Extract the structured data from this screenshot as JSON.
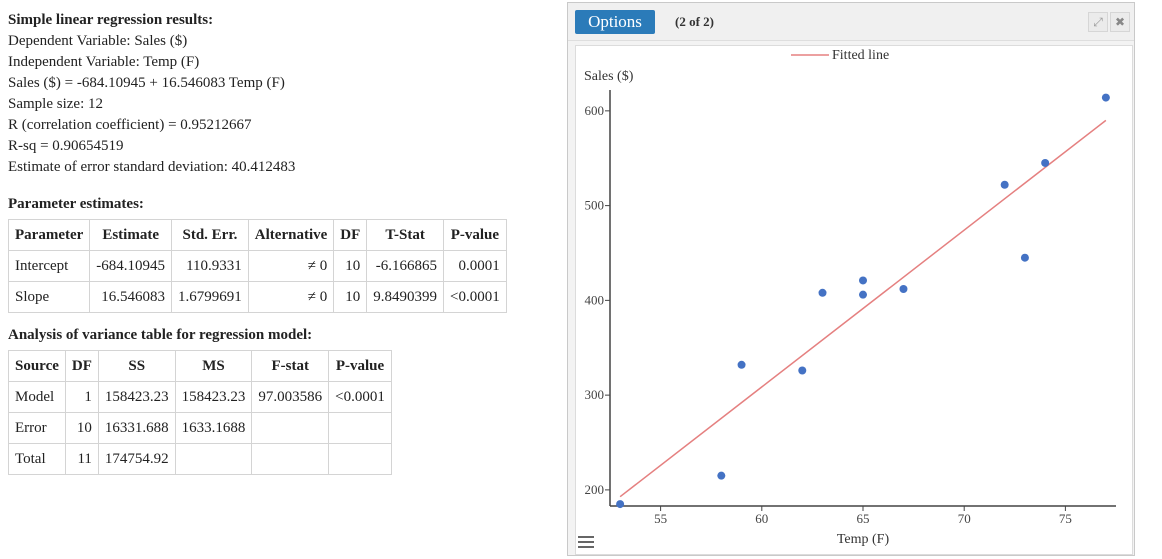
{
  "results": {
    "title": "Simple linear regression results:",
    "lines": [
      "Dependent Variable: Sales ($)",
      "Independent Variable: Temp (F)",
      "Sales ($) = -684.10945 + 16.546083 Temp (F)",
      "Sample size: 12",
      "R (correlation coefficient) = 0.95212667",
      "R-sq = 0.90654519",
      "Estimate of error standard deviation: 40.412483"
    ]
  },
  "params": {
    "title": "Parameter estimates:",
    "headers": [
      "Parameter",
      "Estimate",
      "Std. Err.",
      "Alternative",
      "DF",
      "T-Stat",
      "P-value"
    ],
    "rows": [
      [
        "Intercept",
        "-684.10945",
        "110.9331",
        "≠ 0",
        "10",
        "-6.166865",
        "0.0001"
      ],
      [
        "Slope",
        "16.546083",
        "1.6799691",
        "≠ 0",
        "10",
        "9.8490399",
        "<0.0001"
      ]
    ]
  },
  "anova": {
    "title": "Analysis of variance table for regression model:",
    "headers": [
      "Source",
      "DF",
      "SS",
      "MS",
      "F-stat",
      "P-value"
    ],
    "rows": [
      [
        "Model",
        "1",
        "158423.23",
        "158423.23",
        "97.003586",
        "<0.0001"
      ],
      [
        "Error",
        "10",
        "16331.688",
        "1633.1688",
        "",
        ""
      ],
      [
        "Total",
        "11",
        "174754.92",
        "",
        "",
        ""
      ]
    ]
  },
  "panel": {
    "options_label": "Options",
    "pager": "(2 of 2)",
    "expand_icon": "expand-icon",
    "close_icon": "close-icon",
    "menu_icon": "hamburger-icon",
    "accent": "#2b7bb9"
  },
  "chart_data": {
    "type": "scatter",
    "xlabel": "Temp (F)",
    "ylabel": "Sales ($)",
    "xlim": [
      52.5,
      77.5
    ],
    "ylim": [
      183,
      622
    ],
    "xticks": [
      55,
      60,
      65,
      70,
      75
    ],
    "yticks": [
      200,
      300,
      400,
      500,
      600
    ],
    "series": [
      {
        "points": [
          [
            53,
            185
          ],
          [
            58,
            215
          ],
          [
            59,
            332
          ],
          [
            62,
            326
          ],
          [
            63,
            408
          ],
          [
            65,
            421
          ],
          [
            65,
            406
          ],
          [
            67,
            412
          ],
          [
            72,
            522
          ],
          [
            73,
            445
          ],
          [
            74,
            545
          ],
          [
            77,
            614
          ]
        ],
        "color": "#4472c4"
      }
    ],
    "fitted_line": {
      "name": "Fitted line",
      "intercept": -684.10945,
      "slope": 16.546083,
      "color": "#e58080"
    },
    "legend": "top-center"
  }
}
